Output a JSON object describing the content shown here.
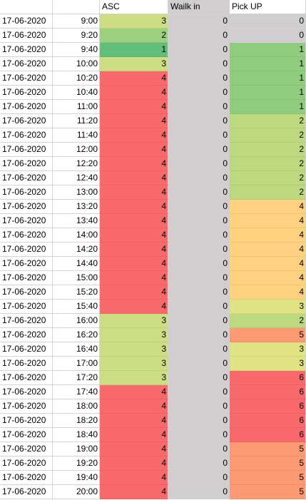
{
  "headers": {
    "date": "",
    "time": "",
    "asc": "ASC",
    "walk_in": "Wailk in",
    "pick_up": "Pick UP"
  },
  "colors": {
    "1": "#63be7b",
    "2": "#9bd07f",
    "3": "#ccdd82",
    "4": "#f8696b",
    "walk": "#d0cece",
    "pick_1": "#8fcc7e",
    "pick_2": "#bcd97f",
    "pick_3": "#e0e383",
    "pick_4": "#fdd17f",
    "pick_5": "#fb9a73",
    "pick_6": "#f8696b"
  },
  "rows": [
    {
      "date": "17-06-2020",
      "time": "9:00",
      "asc": "3",
      "walk": "0",
      "pick": "0"
    },
    {
      "date": "17-06-2020",
      "time": "9:20",
      "asc": "2",
      "walk": "0",
      "pick": "0"
    },
    {
      "date": "17-06-2020",
      "time": "9:40",
      "asc": "1",
      "walk": "0",
      "pick": "1"
    },
    {
      "date": "17-06-2020",
      "time": "10:00",
      "asc": "3",
      "walk": "0",
      "pick": "1"
    },
    {
      "date": "17-06-2020",
      "time": "10:20",
      "asc": "4",
      "walk": "0",
      "pick": "1"
    },
    {
      "date": "17-06-2020",
      "time": "10:40",
      "asc": "4",
      "walk": "0",
      "pick": "1"
    },
    {
      "date": "17-06-2020",
      "time": "11:00",
      "asc": "4",
      "walk": "0",
      "pick": "1"
    },
    {
      "date": "17-06-2020",
      "time": "11:20",
      "asc": "4",
      "walk": "0",
      "pick": "2"
    },
    {
      "date": "17-06-2020",
      "time": "11:40",
      "asc": "4",
      "walk": "0",
      "pick": "2"
    },
    {
      "date": "17-06-2020",
      "time": "12:00",
      "asc": "4",
      "walk": "0",
      "pick": "2"
    },
    {
      "date": "17-06-2020",
      "time": "12:20",
      "asc": "4",
      "walk": "0",
      "pick": "2"
    },
    {
      "date": "17-06-2020",
      "time": "12:40",
      "asc": "4",
      "walk": "0",
      "pick": "2"
    },
    {
      "date": "17-06-2020",
      "time": "13:00",
      "asc": "4",
      "walk": "0",
      "pick": "2"
    },
    {
      "date": "17-06-2020",
      "time": "13:20",
      "asc": "4",
      "walk": "0",
      "pick": "4"
    },
    {
      "date": "17-06-2020",
      "time": "13:40",
      "asc": "4",
      "walk": "0",
      "pick": "4"
    },
    {
      "date": "17-06-2020",
      "time": "14:00",
      "asc": "4",
      "walk": "0",
      "pick": "4"
    },
    {
      "date": "17-06-2020",
      "time": "14:20",
      "asc": "4",
      "walk": "0",
      "pick": "4"
    },
    {
      "date": "17-06-2020",
      "time": "14:40",
      "asc": "4",
      "walk": "0",
      "pick": "4"
    },
    {
      "date": "17-06-2020",
      "time": "15:00",
      "asc": "4",
      "walk": "0",
      "pick": "4"
    },
    {
      "date": "17-06-2020",
      "time": "15:20",
      "asc": "4",
      "walk": "0",
      "pick": "4"
    },
    {
      "date": "17-06-2020",
      "time": "15:40",
      "asc": "4",
      "walk": "0",
      "pick": "3"
    },
    {
      "date": "17-06-2020",
      "time": "16:00",
      "asc": "3",
      "walk": "0",
      "pick": "2"
    },
    {
      "date": "17-06-2020",
      "time": "16:20",
      "asc": "3",
      "walk": "0",
      "pick": "5"
    },
    {
      "date": "17-06-2020",
      "time": "16:40",
      "asc": "3",
      "walk": "0",
      "pick": "3"
    },
    {
      "date": "17-06-2020",
      "time": "17:00",
      "asc": "3",
      "walk": "0",
      "pick": "3"
    },
    {
      "date": "17-06-2020",
      "time": "17:20",
      "asc": "3",
      "walk": "0",
      "pick": "6"
    },
    {
      "date": "17-06-2020",
      "time": "17:40",
      "asc": "4",
      "walk": "0",
      "pick": "6"
    },
    {
      "date": "17-06-2020",
      "time": "18:00",
      "asc": "4",
      "walk": "0",
      "pick": "6"
    },
    {
      "date": "17-06-2020",
      "time": "18:20",
      "asc": "4",
      "walk": "0",
      "pick": "6"
    },
    {
      "date": "17-06-2020",
      "time": "18:40",
      "asc": "4",
      "walk": "0",
      "pick": "6"
    },
    {
      "date": "17-06-2020",
      "time": "19:00",
      "asc": "4",
      "walk": "0",
      "pick": "5"
    },
    {
      "date": "17-06-2020",
      "time": "19:20",
      "asc": "4",
      "walk": "0",
      "pick": "5"
    },
    {
      "date": "17-06-2020",
      "time": "19:40",
      "asc": "4",
      "walk": "0",
      "pick": "5"
    },
    {
      "date": "17-06-2020",
      "time": "20:00",
      "asc": "4",
      "walk": "0",
      "pick": "5"
    }
  ]
}
